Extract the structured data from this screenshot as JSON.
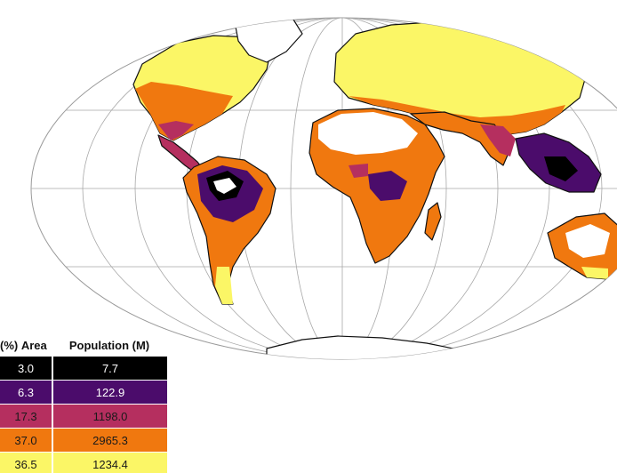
{
  "legend": {
    "header_area": "Area (%)",
    "header_population": "Population (M)",
    "rows": [
      {
        "area": "3.0",
        "population": "7.7",
        "color": "#000000",
        "text_color": "#ffffff"
      },
      {
        "area": "6.3",
        "population": "122.9",
        "color": "#4b0c6b",
        "text_color": "#ffffff"
      },
      {
        "area": "17.3",
        "population": "1198.0",
        "color": "#b52f5f",
        "text_color": "#1a1a1a"
      },
      {
        "area": "37.0",
        "population": "2965.3",
        "color": "#f0780f",
        "text_color": "#1a1a1a"
      },
      {
        "area": "36.5",
        "population": "1234.4",
        "color": "#fbf666",
        "text_color": "#1a1a1a"
      }
    ]
  },
  "map": {
    "projection": "mollweide",
    "graticule": true,
    "land_fill_colors": {
      "cold": "#fbf666",
      "temperate": "#f0780f",
      "hot": "#b52f5f",
      "very_hot": "#4b0c6b",
      "extreme": "#000000",
      "desert": "#ffffff",
      "ice": "#ffffff"
    }
  }
}
